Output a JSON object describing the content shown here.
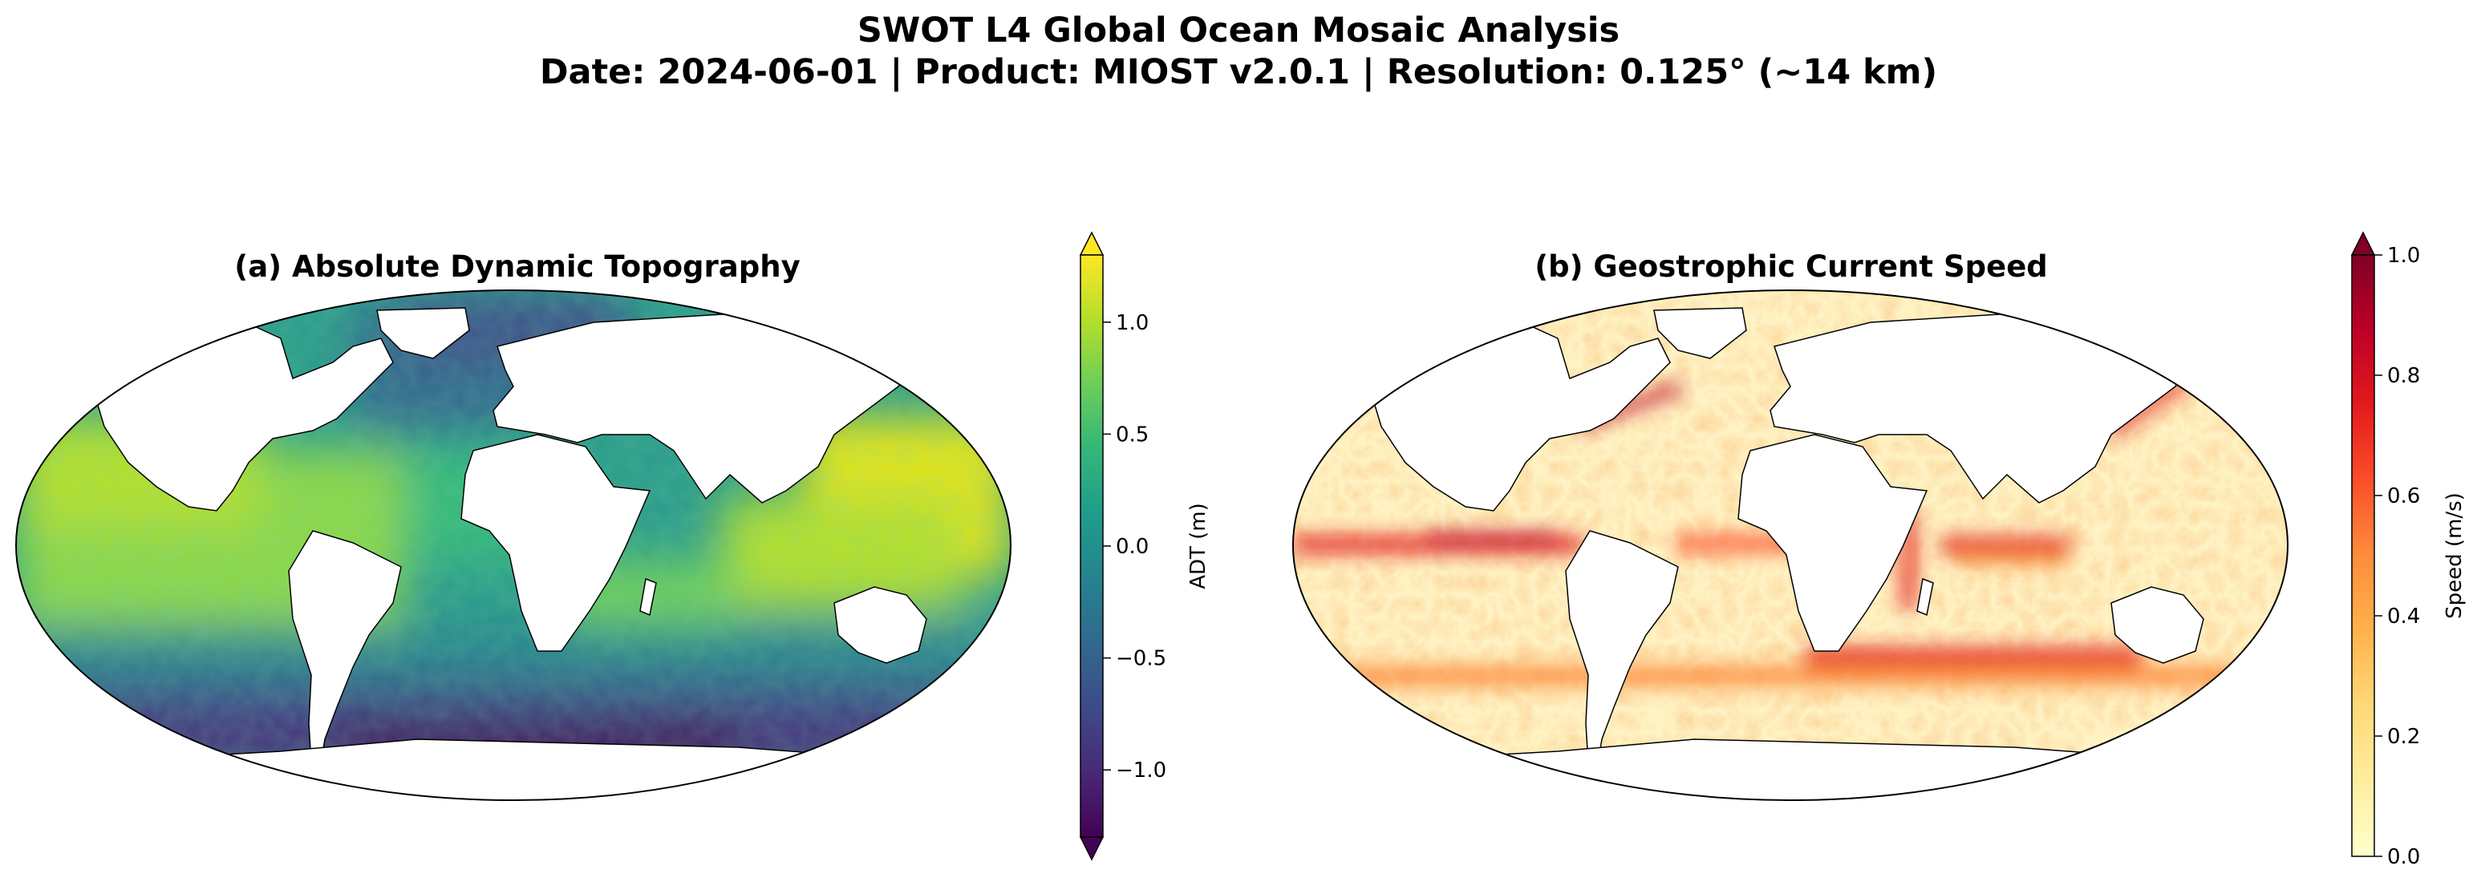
{
  "figure": {
    "title_line1": "SWOT L4 Global Ocean Mosaic Analysis",
    "title_line2": "Date: 2024-06-01 | Product: MIOST v2.0.1 | Resolution: 0.125° (~14 km)"
  },
  "panels": [
    {
      "title": "(a) Absolute Dynamic Topography",
      "colorbar": {
        "label": "ADT (m)",
        "cmap": "viridis",
        "ticks": [
          "1.0",
          "0.5",
          "0.0",
          "−0.5",
          "−1.0"
        ],
        "tick_values": [
          1.0,
          0.5,
          0.0,
          -0.5,
          -1.0
        ],
        "vmin": -1.3,
        "vmax": 1.3,
        "extend": "both"
      }
    },
    {
      "title": "(b) Geostrophic Current Speed",
      "colorbar": {
        "label": "Speed (m/s)",
        "cmap": "YlOrRd",
        "ticks": [
          "1.0",
          "0.8",
          "0.6",
          "0.4",
          "0.2",
          "0.0"
        ],
        "tick_values": [
          1.0,
          0.8,
          0.6,
          0.4,
          0.2,
          0.0
        ],
        "vmin": 0.0,
        "vmax": 1.0,
        "extend": "max"
      }
    }
  ],
  "colors": {
    "viridis": [
      "#440154",
      "#482878",
      "#3e4a89",
      "#31688e",
      "#26828e",
      "#1f9e89",
      "#35b779",
      "#6ece58",
      "#b5de2b",
      "#fde725"
    ],
    "ylorrd": [
      "#ffffcc",
      "#ffeda0",
      "#fed976",
      "#feb24c",
      "#fd8d3c",
      "#fc4e2a",
      "#e31a1c",
      "#bd0026",
      "#800026"
    ],
    "land": "#ffffff",
    "coastline": "#000000"
  },
  "map": {
    "projection": "Robinson",
    "ice_shelf_color": "#ffffff"
  }
}
